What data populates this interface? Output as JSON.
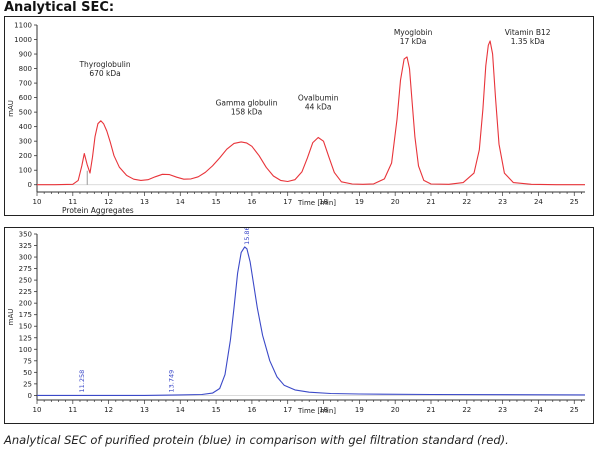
{
  "heading": "Analytical SEC:",
  "caption": "Analytical SEC of purified protein (blue) in comparison with gel filtration standard (red).",
  "chart_data": [
    {
      "type": "line",
      "xlabel": "Time [min]",
      "ylabel": "mAU",
      "xlim": [
        10,
        25.3
      ],
      "ylim": [
        -50,
        1100
      ],
      "xticks": [
        10,
        11,
        12,
        13,
        14,
        15,
        16,
        17,
        18,
        19,
        20,
        21,
        22,
        23,
        24,
        25
      ],
      "yticks": [
        0,
        100,
        200,
        300,
        400,
        500,
        600,
        700,
        800,
        900,
        1000,
        1100
      ],
      "color": "#e8343a",
      "series": [
        {
          "x": [
            10.0,
            10.5,
            11.0,
            11.15,
            11.25,
            11.32,
            11.4,
            11.48,
            11.55,
            11.62,
            11.7,
            11.78,
            11.86,
            11.95,
            12.05,
            12.15,
            12.3,
            12.5,
            12.7,
            12.9,
            13.1,
            13.3,
            13.5,
            13.7,
            13.9,
            14.1,
            14.3,
            14.5,
            14.7,
            14.9,
            15.1,
            15.3,
            15.5,
            15.7,
            15.85,
            16.0,
            16.2,
            16.4,
            16.6,
            16.8,
            17.0,
            17.2,
            17.4,
            17.55,
            17.7,
            17.85,
            18.0,
            18.15,
            18.3,
            18.5,
            18.8,
            19.1,
            19.4,
            19.7,
            19.9,
            20.05,
            20.15,
            20.25,
            20.33,
            20.4,
            20.47,
            20.55,
            20.65,
            20.8,
            21.0,
            21.5,
            21.9,
            22.2,
            22.35,
            22.45,
            22.53,
            22.6,
            22.65,
            22.72,
            22.8,
            22.9,
            23.05,
            23.3,
            23.8,
            24.5,
            25.3
          ],
          "y": [
            0,
            0,
            3,
            30,
            130,
            215,
            140,
            80,
            190,
            330,
            420,
            440,
            420,
            370,
            290,
            200,
            120,
            65,
            38,
            30,
            35,
            55,
            72,
            70,
            52,
            38,
            40,
            55,
            85,
            130,
            185,
            245,
            285,
            295,
            288,
            265,
            200,
            120,
            60,
            30,
            22,
            35,
            90,
            185,
            290,
            325,
            300,
            190,
            85,
            20,
            5,
            3,
            6,
            40,
            150,
            450,
            720,
            865,
            880,
            800,
            580,
            330,
            130,
            30,
            5,
            3,
            15,
            80,
            240,
            520,
            820,
            960,
            990,
            900,
            600,
            280,
            80,
            15,
            3,
            0,
            0
          ]
        }
      ],
      "annotations": [
        {
          "x": 11.9,
          "y": 810,
          "lines": [
            "Thyroglobulin",
            "670 kDa"
          ]
        },
        {
          "x": 15.85,
          "y": 545,
          "lines": [
            "Gamma globulin",
            "158 kDa"
          ]
        },
        {
          "x": 17.85,
          "y": 580,
          "lines": [
            "Ovalbumin",
            "44 kDa"
          ]
        },
        {
          "x": 20.5,
          "y": 1030,
          "lines": [
            "Myoglobin",
            "17 kDa"
          ]
        },
        {
          "x": 23.7,
          "y": 1030,
          "lines": [
            "Vitamin B12",
            "1.35 kDa"
          ]
        },
        {
          "x": 11.7,
          "y": -195,
          "lines": [
            "Protein Aggregates"
          ]
        }
      ]
    },
    {
      "type": "line",
      "xlabel": "Time [min]",
      "ylabel": "mAU",
      "xlim": [
        10,
        25.3
      ],
      "ylim": [
        -10,
        350
      ],
      "xticks": [
        10,
        11,
        12,
        13,
        14,
        15,
        16,
        17,
        18,
        19,
        20,
        21,
        22,
        23,
        24,
        25
      ],
      "yticks": [
        0,
        25,
        50,
        75,
        100,
        125,
        150,
        175,
        200,
        225,
        250,
        275,
        300,
        325,
        350
      ],
      "color": "#3b49c8",
      "series": [
        {
          "x": [
            10.0,
            11.0,
            12.0,
            13.0,
            14.0,
            14.6,
            14.9,
            15.1,
            15.25,
            15.4,
            15.5,
            15.6,
            15.7,
            15.8,
            15.86,
            15.95,
            16.05,
            16.15,
            16.3,
            16.5,
            16.7,
            16.9,
            17.2,
            17.6,
            18.2,
            19.0,
            21.0,
            25.3
          ],
          "y": [
            0,
            0,
            0,
            0,
            1,
            2,
            5,
            15,
            45,
            120,
            190,
            265,
            310,
            322,
            318,
            290,
            240,
            190,
            130,
            75,
            40,
            22,
            12,
            7,
            4,
            3,
            2,
            1
          ]
        }
      ],
      "peak_labels": [
        {
          "x": 11.258,
          "label": "11.258"
        },
        {
          "x": 13.749,
          "label": "13.749"
        },
        {
          "x": 15.862,
          "label": "15.862"
        }
      ]
    }
  ]
}
